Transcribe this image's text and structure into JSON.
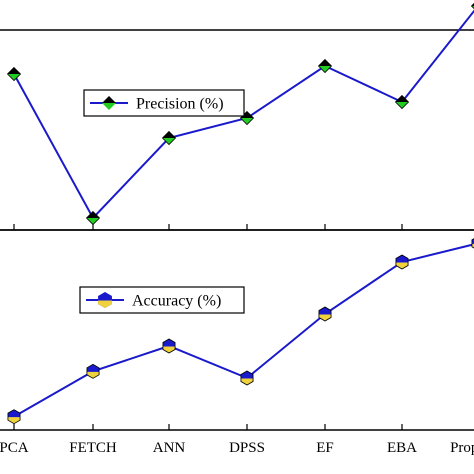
{
  "chart_data": [
    {
      "type": "line",
      "categories": [
        "PCA",
        "FETCH",
        "ANN",
        "DPSS",
        "EF",
        "EBA",
        "Proposed"
      ],
      "series": [
        {
          "name": "Precision (%)",
          "values": [
            0.78,
            0.06,
            0.46,
            0.56,
            0.82,
            0.64,
            1.12
          ],
          "color": "#1a1acc",
          "marker": "diamond",
          "marker_colors": [
            "#000000",
            "#22cc22"
          ]
        }
      ],
      "ylim": [
        0,
        1
      ],
      "legend": "inside-upper-center",
      "grid": false
    },
    {
      "type": "line",
      "categories": [
        "PCA",
        "FETCH",
        "ANN",
        "DPSS",
        "EF",
        "EBA",
        "Proposed"
      ],
      "series": [
        {
          "name": "Accuracy (%)",
          "values": [
            0.1,
            0.44,
            0.63,
            0.39,
            0.87,
            1.26,
            1.4
          ],
          "color": "#1a1acc",
          "marker": "hexagon",
          "marker_colors": [
            "#1a1acc",
            "#f0d23c"
          ]
        }
      ],
      "ylim": [
        0,
        1.5
      ],
      "legend": "inside-upper-left",
      "grid": false
    }
  ]
}
